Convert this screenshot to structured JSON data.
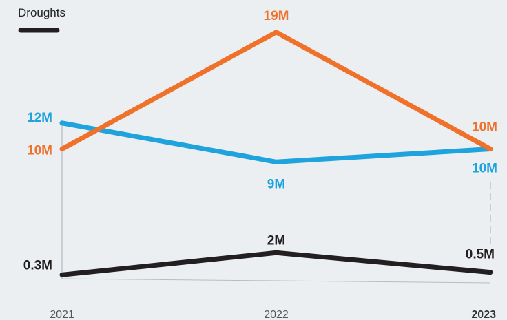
{
  "chart_data": {
    "type": "line",
    "categories": [
      "2021",
      "2022",
      "2023"
    ],
    "emphasized_category": "2023",
    "legend": {
      "label": "Droughts",
      "placement": "top-left"
    },
    "grid": false,
    "series": [
      {
        "name": "Droughts",
        "key": "droughts",
        "color": "#231f20",
        "values": [
          0.3,
          2,
          0.5
        ],
        "labels": [
          "0.3M",
          "2M",
          "0.5M"
        ]
      },
      {
        "key": "orange_series",
        "color": "#f0712a",
        "values": [
          10,
          19,
          10
        ],
        "labels": [
          "10M",
          "19M",
          "10M"
        ]
      },
      {
        "key": "blue_series",
        "color": "#1fa3dc",
        "values": [
          12,
          9,
          10
        ],
        "labels": [
          "12M",
          "9M",
          "10M"
        ]
      }
    ],
    "value_unit": "M",
    "ylim": [
      0,
      20
    ],
    "xlabel": "",
    "ylabel": "",
    "title": ""
  }
}
